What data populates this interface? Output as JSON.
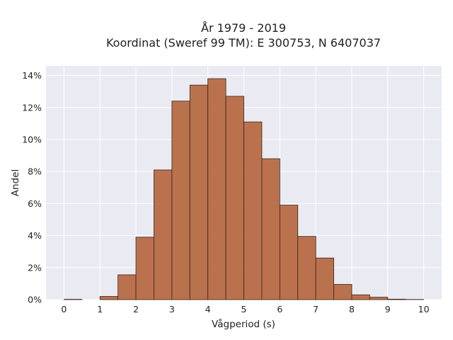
{
  "chart_data": {
    "type": "bar",
    "title_line1": "År 1979 - 2019",
    "title_line2": "Koordinat (Sweref 99 TM): E 300753, N 6407037",
    "xlabel": "Vågperiod (s)",
    "ylabel": "Andel",
    "xlim": [
      -0.5,
      10.5
    ],
    "ylim": [
      0,
      14.6
    ],
    "x_ticks": [
      0,
      1,
      2,
      3,
      4,
      5,
      6,
      7,
      8,
      9,
      10
    ],
    "y_ticks": [
      0,
      2,
      4,
      6,
      8,
      10,
      12,
      14
    ],
    "y_tick_labels": [
      "0%",
      "2%",
      "4%",
      "6%",
      "8%",
      "10%",
      "12%",
      "14%"
    ],
    "bin_width": 0.5,
    "bins": [
      {
        "start": 0.0,
        "value": 0.02
      },
      {
        "start": 0.5,
        "value": 0.0
      },
      {
        "start": 1.0,
        "value": 0.2
      },
      {
        "start": 1.5,
        "value": 1.55
      },
      {
        "start": 2.0,
        "value": 3.9
      },
      {
        "start": 2.5,
        "value": 8.1
      },
      {
        "start": 3.0,
        "value": 12.4
      },
      {
        "start": 3.5,
        "value": 13.4
      },
      {
        "start": 4.0,
        "value": 13.8
      },
      {
        "start": 4.5,
        "value": 12.7
      },
      {
        "start": 5.0,
        "value": 11.1
      },
      {
        "start": 5.5,
        "value": 8.8
      },
      {
        "start": 6.0,
        "value": 5.9
      },
      {
        "start": 6.5,
        "value": 3.95
      },
      {
        "start": 7.0,
        "value": 2.6
      },
      {
        "start": 7.5,
        "value": 0.95
      },
      {
        "start": 8.0,
        "value": 0.3
      },
      {
        "start": 8.5,
        "value": 0.15
      },
      {
        "start": 9.0,
        "value": 0.03
      },
      {
        "start": 9.5,
        "value": 0.01
      }
    ],
    "grid": true,
    "colors": {
      "bar_fill": "#b66c43",
      "bar_stroke": "#3b2418",
      "plot_bg": "#eaeaf2",
      "grid": "#ffffff"
    }
  }
}
